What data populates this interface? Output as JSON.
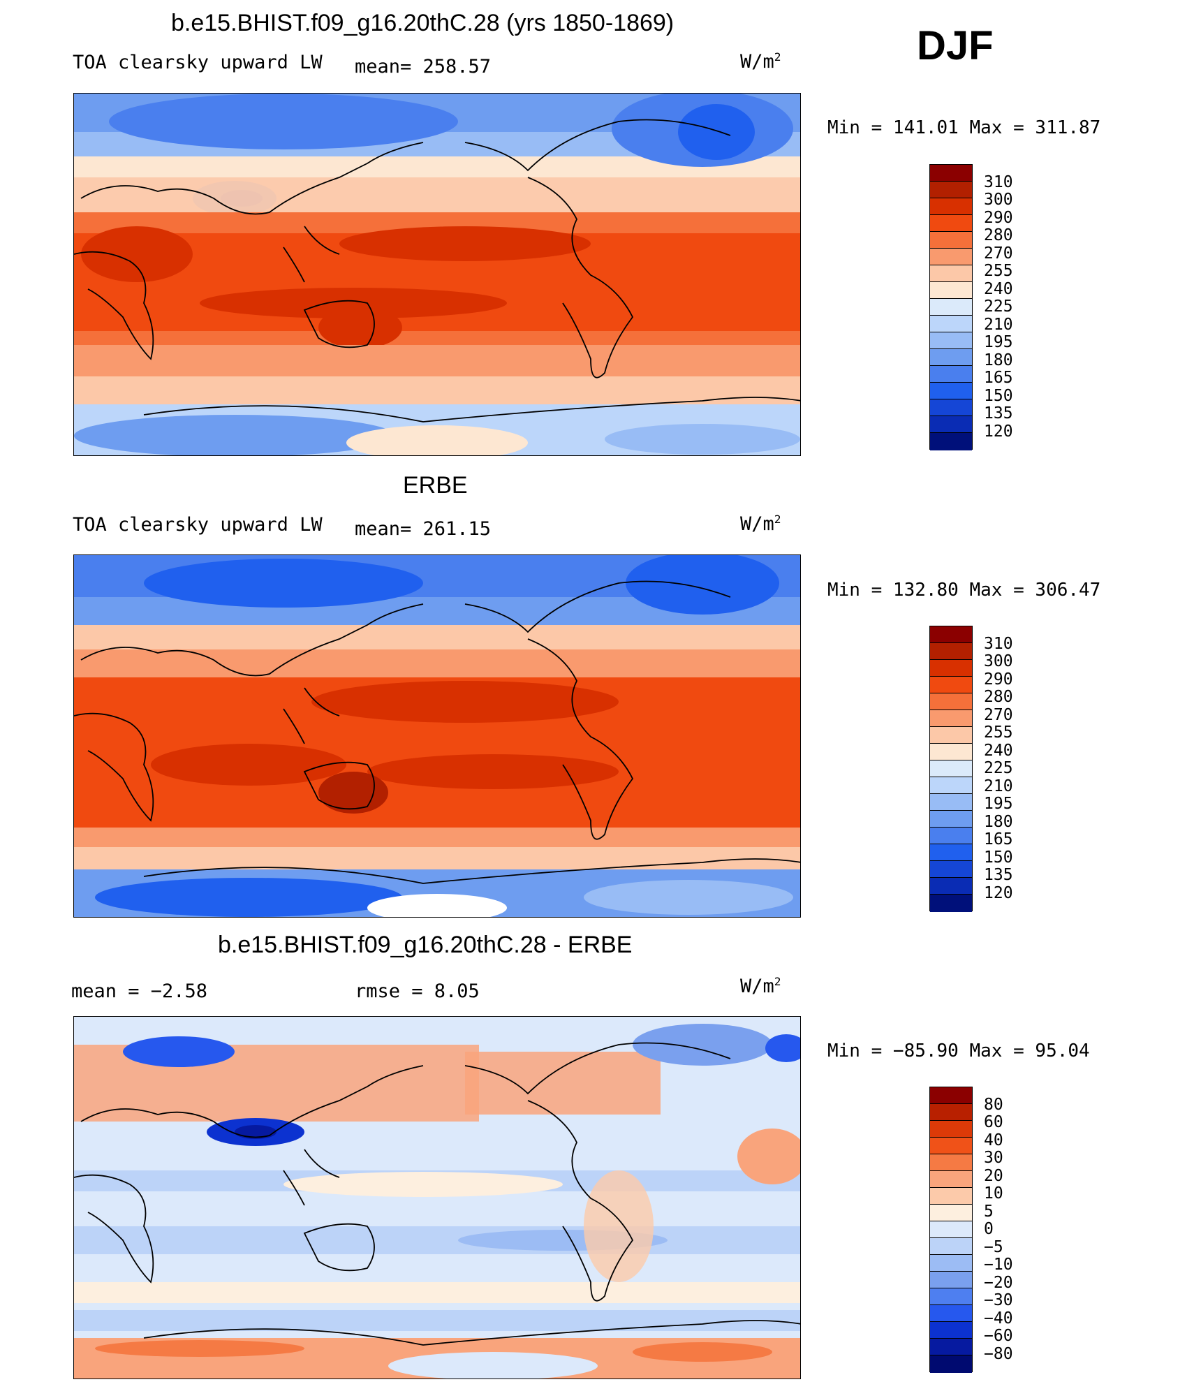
{
  "season": "DJF",
  "panels": [
    {
      "title": "b.e15.BHIST.f09_g16.20thC.28 (yrs 1850-1869)",
      "left_label": "TOA clearsky upward LW",
      "mid_label": "mean=  258.57",
      "units": "W/m",
      "units_sup": "2",
      "minmax": "Min  =  141.01  Max  =  311.87",
      "colorbar": {
        "colors": [
          "#8b0000",
          "#b22000",
          "#d83000",
          "#f04a10",
          "#f5703a",
          "#f99a6e",
          "#fcc8a8",
          "#fde7d2",
          "#dbeafa",
          "#bcd6fa",
          "#98bcf5",
          "#6e9df0",
          "#4a7fee",
          "#2060ee",
          "#1546d6",
          "#0a2cb4",
          "#00107a"
        ],
        "labels": [
          "310",
          "300",
          "290",
          "280",
          "270",
          "255",
          "240",
          "225",
          "210",
          "195",
          "180",
          "165",
          "150",
          "135",
          "120"
        ]
      }
    },
    {
      "title": "ERBE",
      "left_label": "TOA clearsky upward LW",
      "mid_label": "mean=  261.15",
      "units": "W/m",
      "units_sup": "2",
      "minmax": "Min  =  132.80  Max  =  306.47",
      "colorbar": {
        "colors": [
          "#8b0000",
          "#b22000",
          "#d83000",
          "#f04a10",
          "#f5703a",
          "#f99a6e",
          "#fcc8a8",
          "#fde7d2",
          "#dbeafa",
          "#bcd6fa",
          "#98bcf5",
          "#6e9df0",
          "#4a7fee",
          "#2060ee",
          "#1546d6",
          "#0a2cb4",
          "#00107a"
        ],
        "labels": [
          "310",
          "300",
          "290",
          "280",
          "270",
          "255",
          "240",
          "225",
          "210",
          "195",
          "180",
          "165",
          "150",
          "135",
          "120"
        ]
      }
    },
    {
      "title": "b.e15.BHIST.f09_g16.20thC.28 - ERBE",
      "left_label": "mean  =    −2.58",
      "mid_label": "rmse  =     8.05",
      "units": "W/m",
      "units_sup": "2",
      "minmax": "Min  =  −85.90  Max  =    95.04",
      "colorbar": {
        "colors": [
          "#8b0000",
          "#b82000",
          "#dc3a08",
          "#f05218",
          "#f57a44",
          "#f9a47c",
          "#fccaaa",
          "#fdefdf",
          "#dce9fb",
          "#bcd3f8",
          "#9cbcf4",
          "#7aa0ee",
          "#4e7ff0",
          "#2658ee",
          "#0c32d0",
          "#061aa0",
          "#000a70"
        ],
        "labels": [
          "80",
          "60",
          "40",
          "30",
          "20",
          "10",
          "5",
          "0",
          "−5",
          "−10",
          "−20",
          "−30",
          "−40",
          "−60",
          "−80"
        ]
      }
    }
  ]
}
